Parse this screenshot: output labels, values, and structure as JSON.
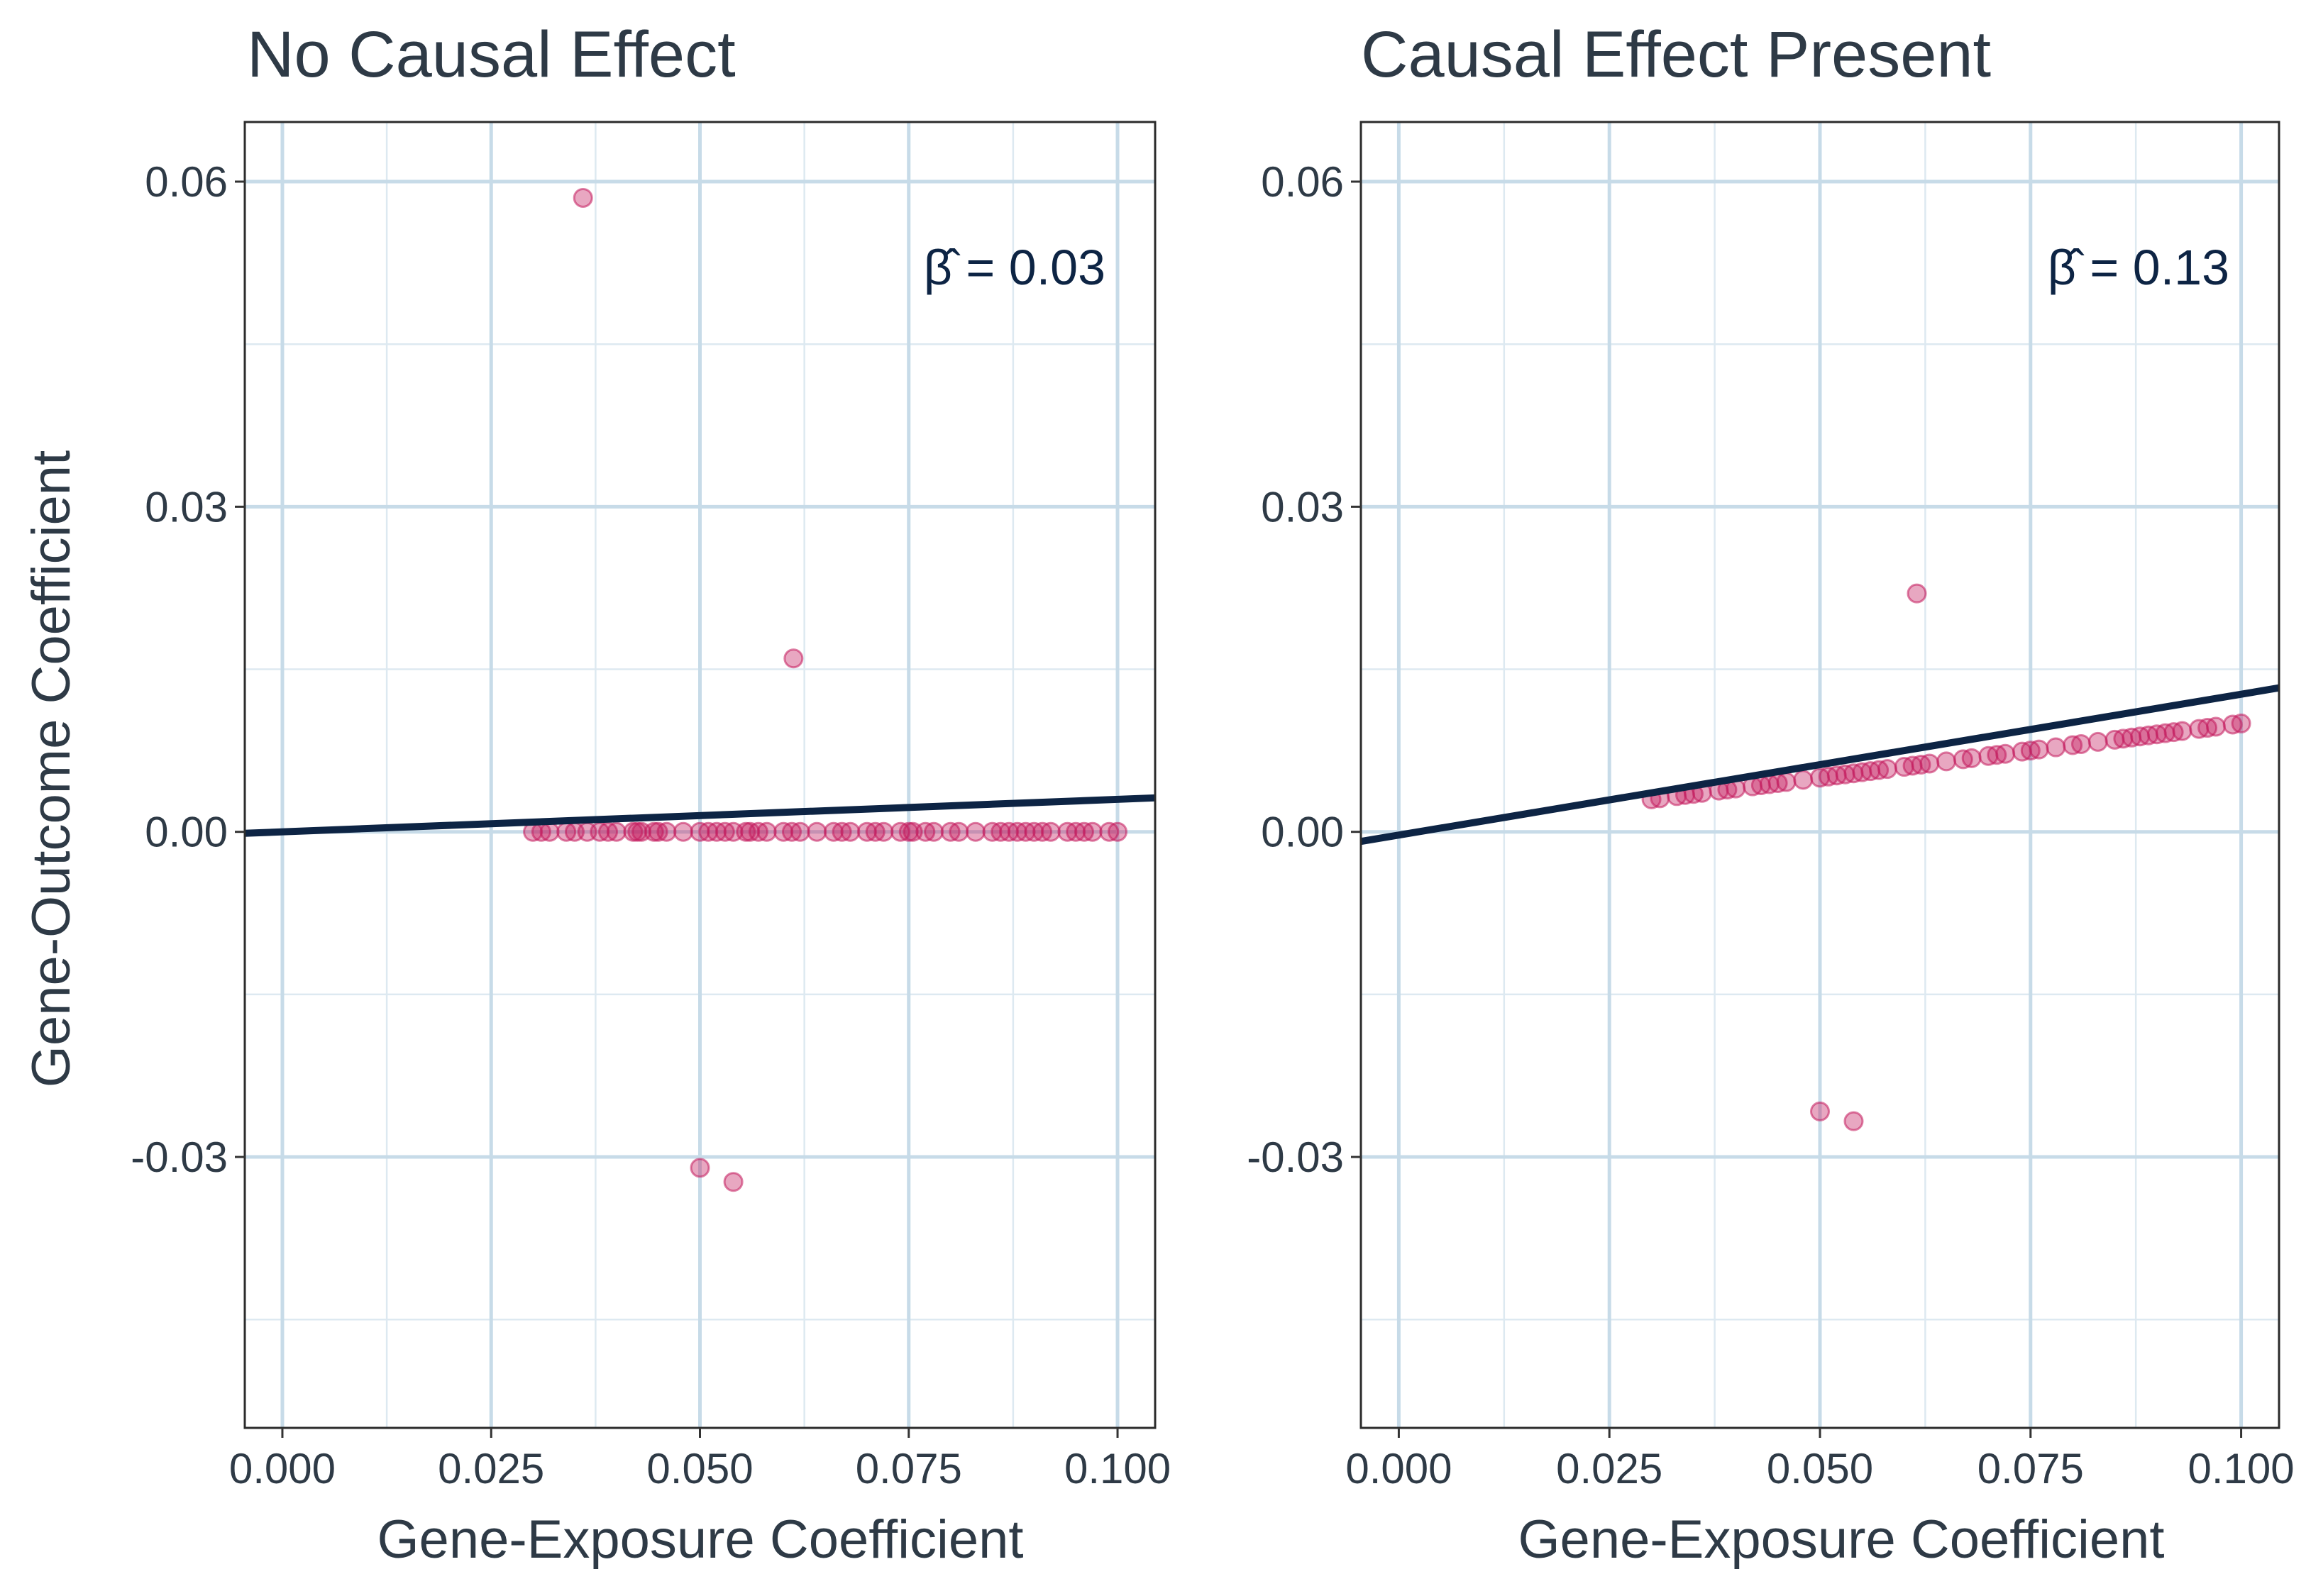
{
  "colors": {
    "point": "#c2185b",
    "line": "#0d2444",
    "grid_major": "#c7dbe8",
    "grid_minor": "#dde9f1",
    "text": "#2e3a46"
  },
  "ylabel": "Gene-Outcome Coefficient",
  "chart_data": [
    {
      "type": "scatter",
      "title": "No Causal Effect",
      "xlabel": "Gene-Exposure Coefficient",
      "ylabel": "Gene-Outcome Coefficient",
      "annotation": "β̂ = 0.03",
      "xlim": [
        -0.0045,
        0.1045
      ],
      "ylim": [
        -0.055,
        0.0655
      ],
      "xticks": [
        "0.000",
        "0.025",
        "0.050",
        "0.075",
        "0.100"
      ],
      "yticks": [
        "-0.03",
        "0.00",
        "0.03",
        "0.06"
      ],
      "fit_line": {
        "intercept": 0,
        "slope": 0.03
      },
      "points": [
        {
          "x": 0.036,
          "y": 0.0585
        },
        {
          "x": 0.0612,
          "y": 0.016
        },
        {
          "x": 0.05,
          "y": -0.031
        },
        {
          "x": 0.054,
          "y": -0.0323
        },
        {
          "x": 0.03,
          "y": 0
        },
        {
          "x": 0.031,
          "y": 0
        },
        {
          "x": 0.032,
          "y": 0
        },
        {
          "x": 0.034,
          "y": 0
        },
        {
          "x": 0.035,
          "y": 0
        },
        {
          "x": 0.0365,
          "y": 0
        },
        {
          "x": 0.038,
          "y": 0
        },
        {
          "x": 0.039,
          "y": 0
        },
        {
          "x": 0.04,
          "y": 0
        },
        {
          "x": 0.042,
          "y": 0
        },
        {
          "x": 0.0425,
          "y": 0
        },
        {
          "x": 0.043,
          "y": 0
        },
        {
          "x": 0.0445,
          "y": 0
        },
        {
          "x": 0.045,
          "y": 0
        },
        {
          "x": 0.046,
          "y": 0
        },
        {
          "x": 0.048,
          "y": 0
        },
        {
          "x": 0.05,
          "y": 0
        },
        {
          "x": 0.051,
          "y": 0
        },
        {
          "x": 0.052,
          "y": 0
        },
        {
          "x": 0.053,
          "y": 0
        },
        {
          "x": 0.054,
          "y": 0
        },
        {
          "x": 0.0555,
          "y": 0
        },
        {
          "x": 0.056,
          "y": 0
        },
        {
          "x": 0.057,
          "y": 0
        },
        {
          "x": 0.058,
          "y": 0
        },
        {
          "x": 0.06,
          "y": 0
        },
        {
          "x": 0.061,
          "y": 0
        },
        {
          "x": 0.062,
          "y": 0
        },
        {
          "x": 0.064,
          "y": 0
        },
        {
          "x": 0.066,
          "y": 0
        },
        {
          "x": 0.067,
          "y": 0
        },
        {
          "x": 0.068,
          "y": 0
        },
        {
          "x": 0.07,
          "y": 0
        },
        {
          "x": 0.071,
          "y": 0
        },
        {
          "x": 0.072,
          "y": 0
        },
        {
          "x": 0.074,
          "y": 0
        },
        {
          "x": 0.075,
          "y": 0
        },
        {
          "x": 0.0755,
          "y": 0
        },
        {
          "x": 0.077,
          "y": 0
        },
        {
          "x": 0.078,
          "y": 0
        },
        {
          "x": 0.08,
          "y": 0
        },
        {
          "x": 0.081,
          "y": 0
        },
        {
          "x": 0.083,
          "y": 0
        },
        {
          "x": 0.085,
          "y": 0
        },
        {
          "x": 0.086,
          "y": 0
        },
        {
          "x": 0.087,
          "y": 0
        },
        {
          "x": 0.088,
          "y": 0
        },
        {
          "x": 0.089,
          "y": 0
        },
        {
          "x": 0.09,
          "y": 0
        },
        {
          "x": 0.091,
          "y": 0
        },
        {
          "x": 0.092,
          "y": 0
        },
        {
          "x": 0.094,
          "y": 0
        },
        {
          "x": 0.095,
          "y": 0
        },
        {
          "x": 0.096,
          "y": 0
        },
        {
          "x": 0.097,
          "y": 0
        },
        {
          "x": 0.099,
          "y": 0
        },
        {
          "x": 0.1,
          "y": 0
        }
      ]
    },
    {
      "type": "scatter",
      "title": "Causal Effect Present",
      "xlabel": "Gene-Exposure Coefficient",
      "ylabel": "",
      "annotation": "β̂ = 0.13",
      "xlim": [
        -0.0045,
        0.1045
      ],
      "ylim": [
        -0.055,
        0.0655
      ],
      "xticks": [
        "0.000",
        "0.025",
        "0.050",
        "0.075",
        "0.100"
      ],
      "yticks": [
        "-0.03",
        "0.00",
        "0.03",
        "0.06"
      ],
      "fit_line": {
        "intercept": -0.0003,
        "slope": 0.13
      },
      "points": [
        {
          "x": 0.0615,
          "y": 0.022
        },
        {
          "x": 0.05,
          "y": -0.0258
        },
        {
          "x": 0.054,
          "y": -0.0267
        },
        {
          "x": 0.03,
          "y": 0.003
        },
        {
          "x": 0.031,
          "y": 0.0031
        },
        {
          "x": 0.033,
          "y": 0.0033
        },
        {
          "x": 0.034,
          "y": 0.0034
        },
        {
          "x": 0.035,
          "y": 0.0035
        },
        {
          "x": 0.036,
          "y": 0.0036
        },
        {
          "x": 0.038,
          "y": 0.0038
        },
        {
          "x": 0.039,
          "y": 0.0039
        },
        {
          "x": 0.04,
          "y": 0.004
        },
        {
          "x": 0.042,
          "y": 0.0042
        },
        {
          "x": 0.043,
          "y": 0.0043
        },
        {
          "x": 0.044,
          "y": 0.0044
        },
        {
          "x": 0.045,
          "y": 0.0045
        },
        {
          "x": 0.046,
          "y": 0.0046
        },
        {
          "x": 0.048,
          "y": 0.0048
        },
        {
          "x": 0.05,
          "y": 0.005
        },
        {
          "x": 0.051,
          "y": 0.0051
        },
        {
          "x": 0.052,
          "y": 0.0052
        },
        {
          "x": 0.053,
          "y": 0.0053
        },
        {
          "x": 0.054,
          "y": 0.0054
        },
        {
          "x": 0.055,
          "y": 0.0055
        },
        {
          "x": 0.056,
          "y": 0.0056
        },
        {
          "x": 0.057,
          "y": 0.0057
        },
        {
          "x": 0.058,
          "y": 0.0058
        },
        {
          "x": 0.06,
          "y": 0.006
        },
        {
          "x": 0.061,
          "y": 0.0061
        },
        {
          "x": 0.062,
          "y": 0.0062
        },
        {
          "x": 0.063,
          "y": 0.0063
        },
        {
          "x": 0.065,
          "y": 0.0065
        },
        {
          "x": 0.067,
          "y": 0.0067
        },
        {
          "x": 0.068,
          "y": 0.0068
        },
        {
          "x": 0.07,
          "y": 0.007
        },
        {
          "x": 0.071,
          "y": 0.0071
        },
        {
          "x": 0.072,
          "y": 0.0072
        },
        {
          "x": 0.074,
          "y": 0.0074
        },
        {
          "x": 0.075,
          "y": 0.0075
        },
        {
          "x": 0.076,
          "y": 0.0076
        },
        {
          "x": 0.078,
          "y": 0.0078
        },
        {
          "x": 0.08,
          "y": 0.008
        },
        {
          "x": 0.081,
          "y": 0.0081
        },
        {
          "x": 0.083,
          "y": 0.0083
        },
        {
          "x": 0.085,
          "y": 0.0085
        },
        {
          "x": 0.086,
          "y": 0.0086
        },
        {
          "x": 0.087,
          "y": 0.0087
        },
        {
          "x": 0.088,
          "y": 0.0088
        },
        {
          "x": 0.089,
          "y": 0.0089
        },
        {
          "x": 0.09,
          "y": 0.009
        },
        {
          "x": 0.091,
          "y": 0.0091
        },
        {
          "x": 0.092,
          "y": 0.0092
        },
        {
          "x": 0.093,
          "y": 0.0093
        },
        {
          "x": 0.095,
          "y": 0.0095
        },
        {
          "x": 0.096,
          "y": 0.0096
        },
        {
          "x": 0.097,
          "y": 0.0097
        },
        {
          "x": 0.099,
          "y": 0.0099
        },
        {
          "x": 0.1,
          "y": 0.01
        }
      ]
    }
  ]
}
